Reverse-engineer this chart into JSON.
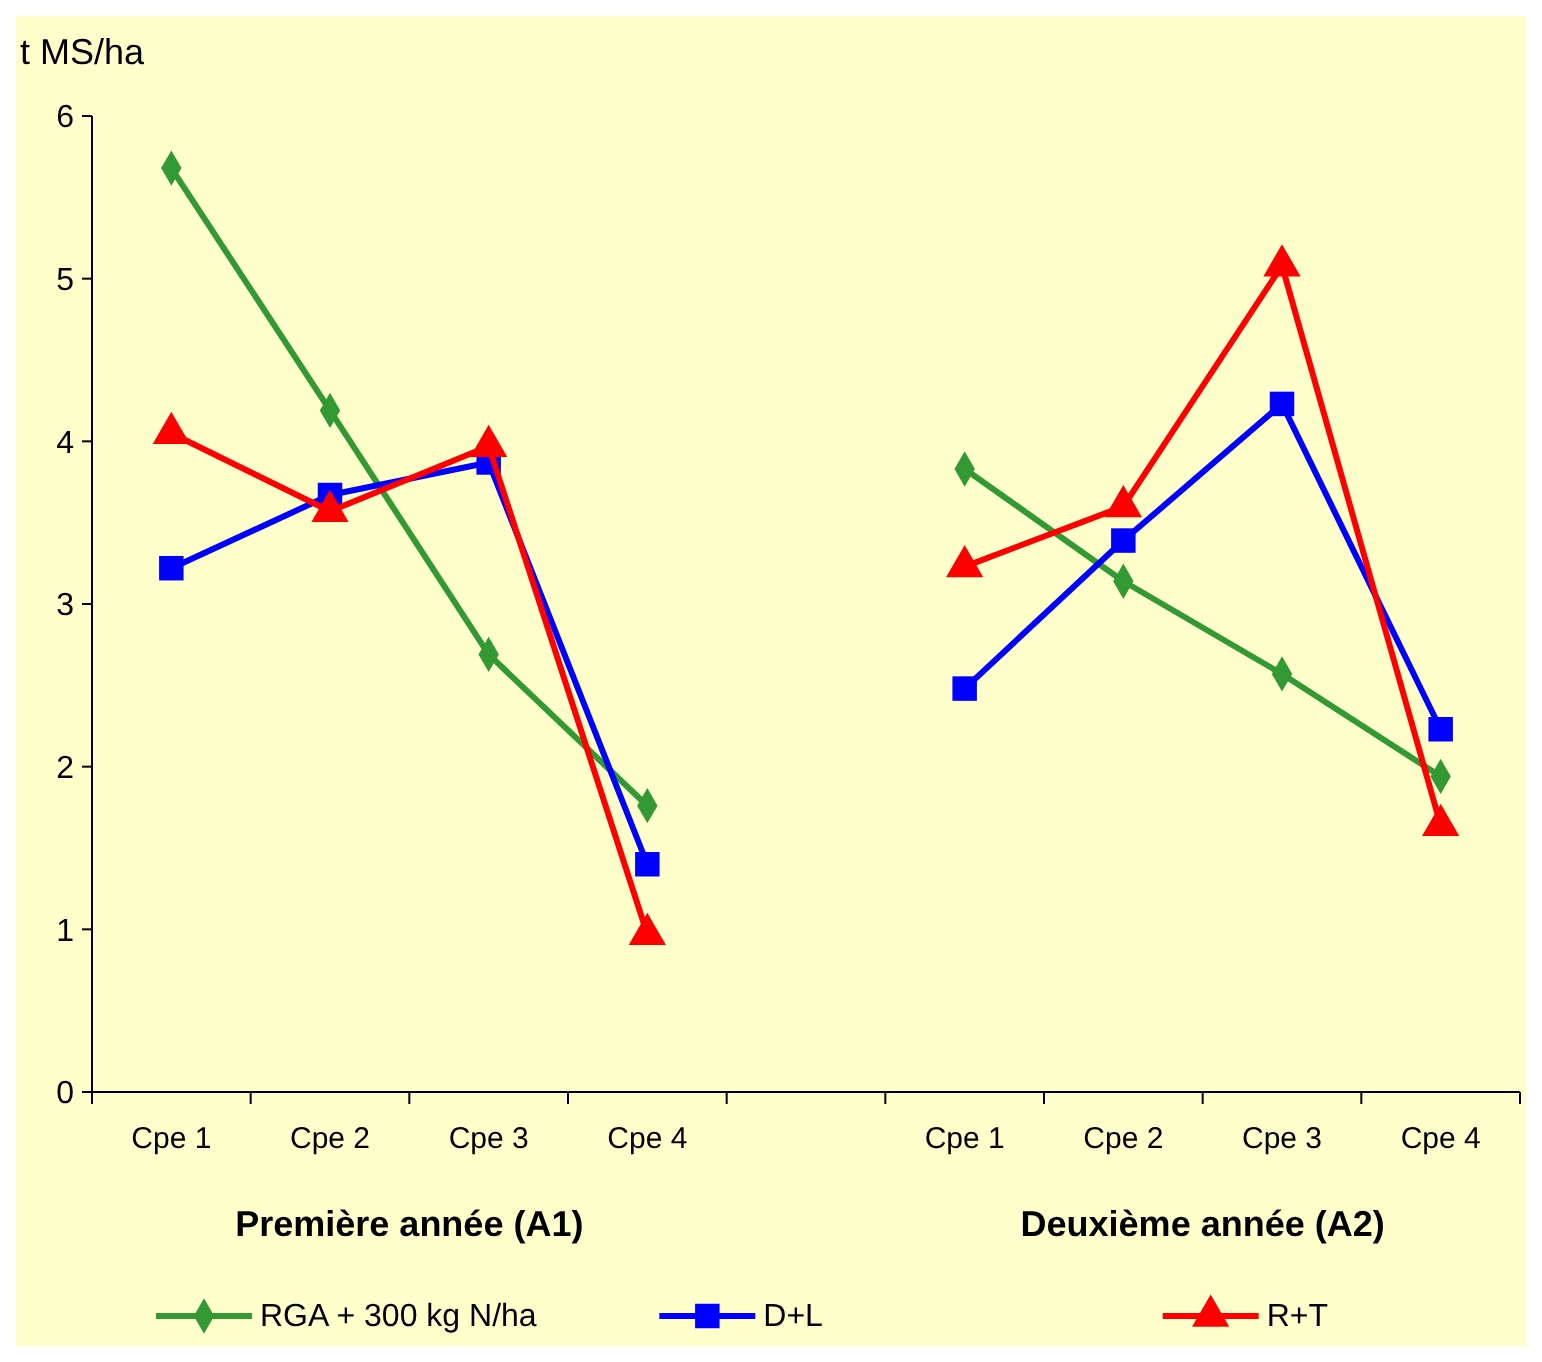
{
  "chart_data": {
    "type": "line",
    "ylabel": "t MS/ha",
    "categories": [
      "Cpe 1",
      "Cpe 2",
      "Cpe 3",
      "Cpe 4",
      null,
      "Cpe 1",
      "Cpe 2",
      "Cpe 3",
      "Cpe 4"
    ],
    "series": [
      {
        "name": "RGA + 300 kg N/ha",
        "color": "#339933",
        "marker": "diamond",
        "values": [
          5.68,
          4.19,
          2.69,
          1.76,
          null,
          3.83,
          3.14,
          2.57,
          1.94
        ]
      },
      {
        "name": "D+L",
        "color": "#0000ff",
        "marker": "square",
        "values": [
          3.22,
          3.67,
          3.87,
          1.4,
          null,
          2.48,
          3.39,
          4.23,
          2.23
        ]
      },
      {
        "name": "R+T",
        "color": "#ff0000",
        "marker": "triangle",
        "values": [
          4.05,
          3.57,
          3.97,
          0.97,
          null,
          3.23,
          3.6,
          5.08,
          1.64
        ]
      }
    ],
    "ylim": [
      0,
      6
    ],
    "yticks": [
      0,
      1,
      2,
      3,
      4,
      5,
      6
    ],
    "grid": false,
    "legend": "bottom",
    "annotations": [
      "Première année (A1)",
      "Deuxième année (A2)"
    ]
  }
}
